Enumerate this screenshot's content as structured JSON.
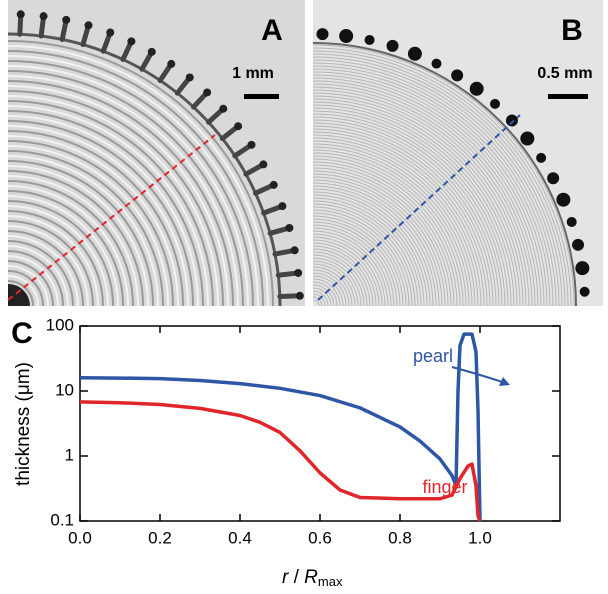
{
  "panels": [
    {
      "label": "A",
      "scale_bar": "1 mm"
    },
    {
      "label": "B",
      "scale_bar": "0.5 mm"
    }
  ],
  "chart_data": {
    "type": "line",
    "panel_label": "C",
    "xlabel": [
      "r",
      " / ",
      "R",
      "max"
    ],
    "ylabel": "thickness (μm)",
    "xlim": [
      0,
      1.2
    ],
    "xticks": [
      {
        "value": 0,
        "label": "0.0"
      },
      0.2,
      0.4,
      0.6,
      0.8,
      {
        "value": 1,
        "label": "1.0"
      }
    ],
    "ylim": [
      0.1,
      100
    ],
    "yticks": [
      0.1,
      1,
      10,
      100
    ],
    "yscale": "log",
    "series": [
      {
        "name": "pearl",
        "color": "#2e56a6",
        "x": [
          0,
          0.1,
          0.2,
          0.3,
          0.4,
          0.5,
          0.6,
          0.7,
          0.8,
          0.85,
          0.9,
          0.93,
          0.94,
          0.945,
          0.95,
          0.96,
          0.98,
          0.99,
          0.995,
          1.0
        ],
        "values": [
          16,
          15.8,
          15.5,
          14.5,
          13,
          11,
          8.5,
          5.5,
          2.8,
          1.7,
          0.9,
          0.5,
          0.35,
          10,
          50,
          75,
          75,
          40,
          5,
          0.1
        ]
      },
      {
        "name": "finger",
        "color": "#e0262b",
        "x": [
          0,
          0.1,
          0.2,
          0.3,
          0.4,
          0.45,
          0.5,
          0.55,
          0.6,
          0.65,
          0.7,
          0.8,
          0.9,
          0.93,
          0.95,
          0.97,
          0.98,
          0.99,
          0.995,
          1.0
        ],
        "values": [
          6.8,
          6.6,
          6.2,
          5.4,
          4.2,
          3.3,
          2.3,
          1.2,
          0.55,
          0.3,
          0.23,
          0.22,
          0.22,
          0.25,
          0.45,
          0.7,
          0.75,
          0.35,
          0.12,
          0.1
        ]
      }
    ]
  }
}
